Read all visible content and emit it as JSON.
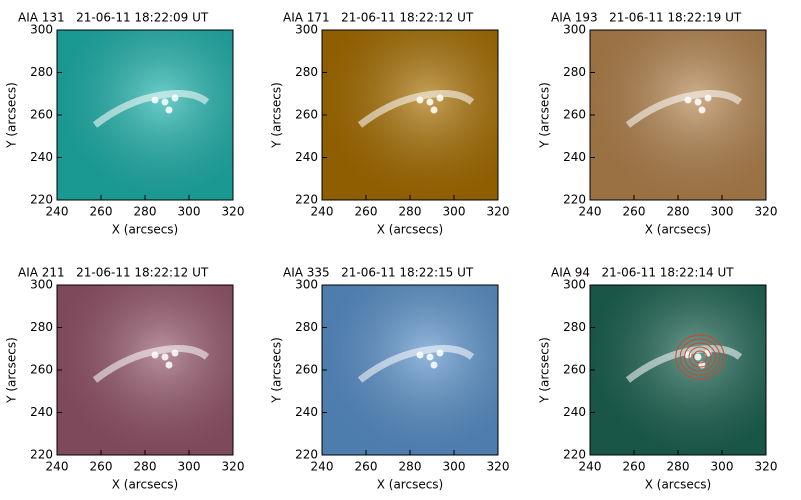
{
  "chart_data": [
    {
      "type": "image",
      "title": "AIA 131   21-06-11 18:22:09 UT",
      "xlabel": "X (arcsecs)",
      "ylabel": "Y (arcsecs)",
      "xlim": [
        240,
        320
      ],
      "ylim": [
        220,
        300
      ],
      "xticks": [
        240,
        260,
        280,
        300,
        320
      ],
      "yticks": [
        220,
        240,
        260,
        280,
        300
      ],
      "color": "#1fb3ac"
    },
    {
      "type": "image",
      "title": "AIA 171   21-06-11 18:22:12 UT",
      "xlabel": "X (arcsecs)",
      "ylabel": "Y (arcsecs)",
      "xlim": [
        240,
        320
      ],
      "ylim": [
        220,
        300
      ],
      "xticks": [
        240,
        260,
        280,
        300,
        320
      ],
      "yticks": [
        220,
        240,
        260,
        280,
        300
      ],
      "color": "#a86f00"
    },
    {
      "type": "image",
      "title": "AIA 193   21-06-11 18:22:19 UT",
      "xlabel": "X (arcsecs)",
      "ylabel": "Y (arcsecs)",
      "xlim": [
        240,
        320
      ],
      "ylim": [
        220,
        300
      ],
      "xticks": [
        240,
        260,
        280,
        300,
        320
      ],
      "yticks": [
        220,
        240,
        260,
        280,
        300
      ],
      "color": "#b5854f"
    },
    {
      "type": "image",
      "title": "AIA 211   21-06-11 18:22:12 UT",
      "xlabel": "X (arcsecs)",
      "ylabel": "Y (arcsecs)",
      "xlim": [
        240,
        320
      ],
      "ylim": [
        220,
        300
      ],
      "xticks": [
        240,
        260,
        280,
        300,
        320
      ],
      "yticks": [
        220,
        240,
        260,
        280,
        300
      ],
      "color": "#95566c"
    },
    {
      "type": "image",
      "title": "AIA 335   21-06-11 18:22:15 UT",
      "xlabel": "X (arcsecs)",
      "ylabel": "Y (arcsecs)",
      "xlim": [
        240,
        320
      ],
      "ylim": [
        220,
        300
      ],
      "xticks": [
        240,
        260,
        280,
        300,
        320
      ],
      "yticks": [
        220,
        240,
        260,
        280,
        300
      ],
      "color": "#5b93cc"
    },
    {
      "type": "image",
      "title": "AIA 94   21-06-11 18:22:14 UT",
      "xlabel": "X (arcsecs)",
      "ylabel": "Y (arcsecs)",
      "xlim": [
        240,
        320
      ],
      "ylim": [
        220,
        300
      ],
      "xticks": [
        240,
        260,
        280,
        300,
        320
      ],
      "yticks": [
        220,
        240,
        260,
        280,
        300
      ],
      "color": "#1d6553"
    }
  ]
}
